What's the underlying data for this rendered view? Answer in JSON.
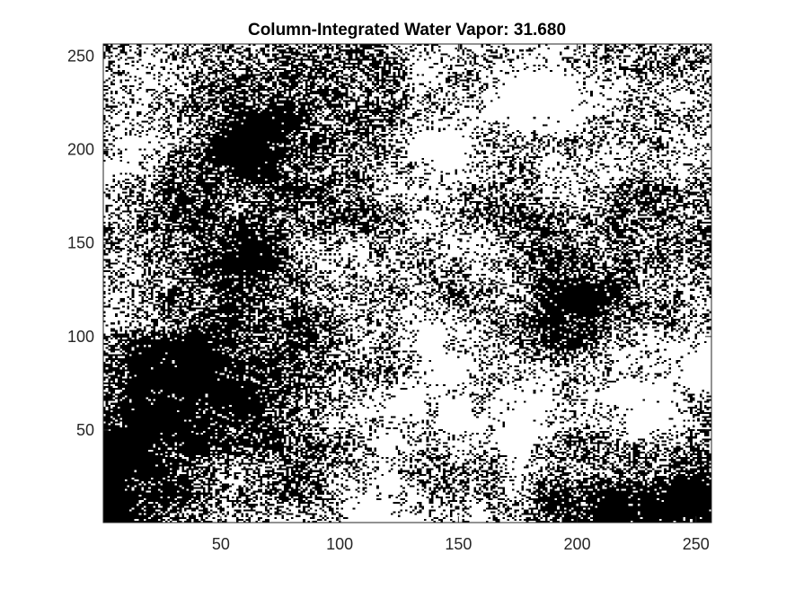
{
  "chart_data": {
    "type": "heatmap",
    "title": "Column-Integrated Water Vapor:  31.680",
    "xlabel": "",
    "ylabel": "",
    "xlim": [
      1,
      256
    ],
    "ylim": [
      1,
      256
    ],
    "x_ticks": [
      50,
      100,
      150,
      200,
      250
    ],
    "y_ticks": [
      50,
      100,
      150,
      200,
      250
    ],
    "grid": false,
    "grid_size": [
      256,
      256
    ],
    "colormap": {
      "low": "#000000",
      "high": "#ffffff"
    },
    "description_of_values": "binary field (black/white)"
  },
  "colors": {
    "axis": "#262626",
    "background": "#ffffff"
  }
}
